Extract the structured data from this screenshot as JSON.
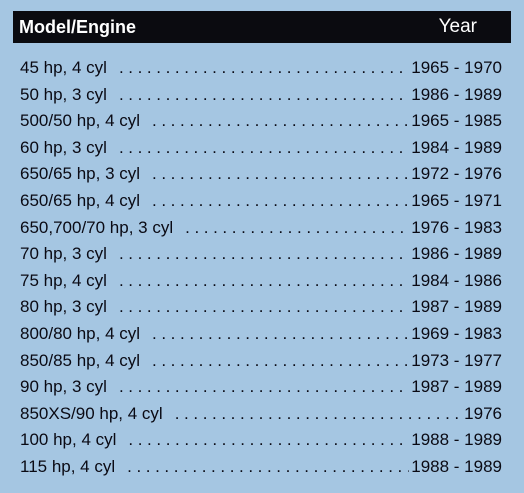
{
  "header": {
    "model_label": "Model/Engine",
    "year_label": "Year"
  },
  "rows": [
    {
      "model": "45 hp, 4 cyl",
      "years": "1965 - 1970"
    },
    {
      "model": "50 hp, 3 cyl",
      "years": "1986 - 1989"
    },
    {
      "model": "500/50 hp, 4 cyl",
      "years": "1965 - 1985"
    },
    {
      "model": "60 hp, 3 cyl",
      "years": "1984 - 1989"
    },
    {
      "model": "650/65 hp, 3 cyl",
      "years": "1972 - 1976"
    },
    {
      "model": "650/65 hp, 4 cyl",
      "years": "1965 - 1971"
    },
    {
      "model": "650,700/70 hp, 3 cyl",
      "years": "1976 - 1983"
    },
    {
      "model": "70 hp, 3 cyl",
      "years": "1986 - 1989"
    },
    {
      "model": "75 hp, 4 cyl",
      "years": "1984 - 1986"
    },
    {
      "model": "80 hp, 3 cyl",
      "years": "1987 - 1989"
    },
    {
      "model": "800/80 hp, 4 cyl",
      "years": "1969 - 1983"
    },
    {
      "model": "850/85 hp, 4 cyl",
      "years": "1973 - 1977"
    },
    {
      "model": "90 hp, 3 cyl",
      "years": "1987 - 1989"
    },
    {
      "model": "850XS/90 hp, 4 cyl",
      "years": "1976"
    },
    {
      "model": "100 hp, 4 cyl",
      "years": "1988 - 1989"
    },
    {
      "model": "115 hp, 4 cyl",
      "years": "1988 - 1989"
    }
  ]
}
